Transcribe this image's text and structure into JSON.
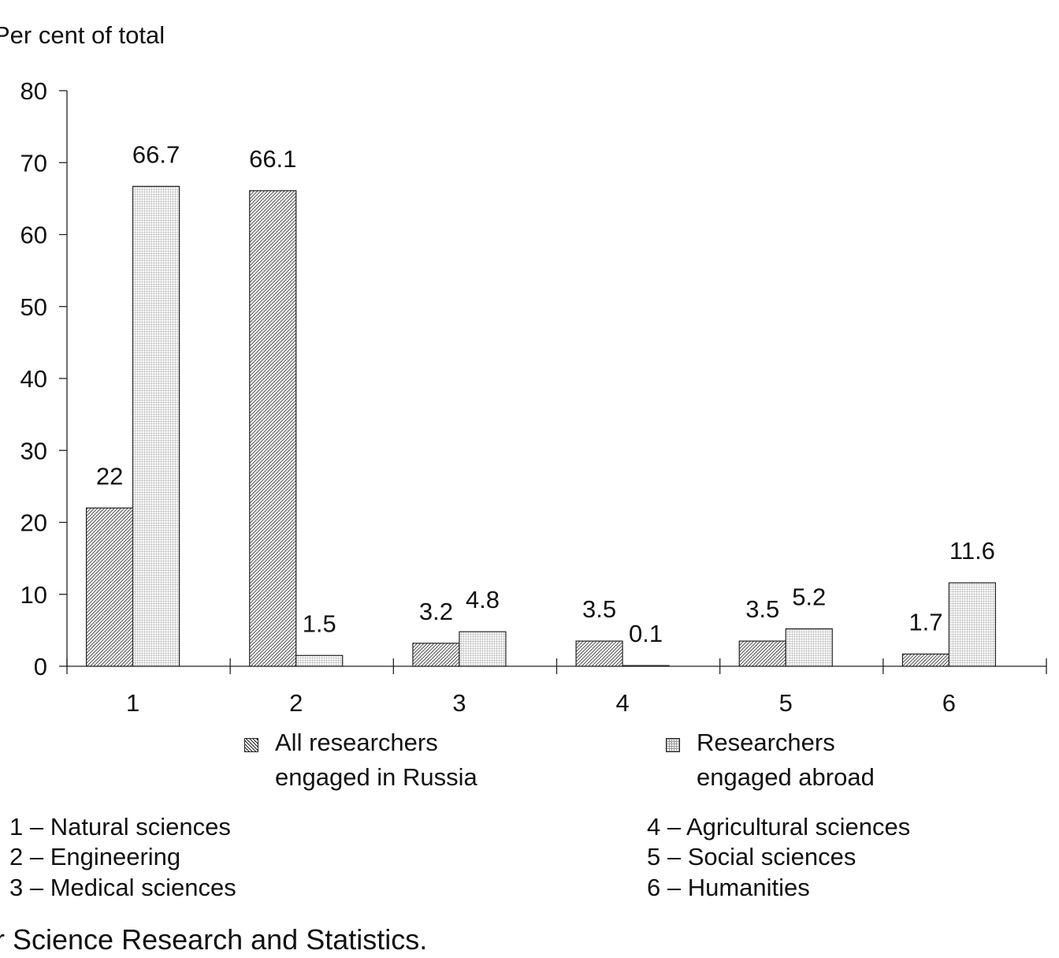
{
  "chart_data": {
    "type": "bar",
    "ylabel": "Per cent of total",
    "ylim": [
      0,
      80
    ],
    "yticks": [
      "0",
      "10",
      "20",
      "30",
      "40",
      "50",
      "60",
      "70",
      "80"
    ],
    "categories": [
      "1",
      "2",
      "3",
      "4",
      "5",
      "6"
    ],
    "series": [
      {
        "name": "All researchers engaged in Russia",
        "values": [
          22,
          66.1,
          3.2,
          3.5,
          3.5,
          1.7
        ],
        "labels": [
          "22",
          "66.1",
          "3.2",
          "3.5",
          "3.5",
          "1.7"
        ]
      },
      {
        "name": "Researchers engaged abroad",
        "values": [
          66.7,
          1.5,
          4.8,
          0.1,
          5.2,
          11.6
        ],
        "labels": [
          "66.7",
          "1.5",
          "4.8",
          "0.1",
          "5.2",
          "11.6"
        ]
      }
    ],
    "grid": false,
    "legend_position": "bottom"
  },
  "legend": {
    "russia_line1": "All researchers",
    "russia_line2": "engaged in Russia",
    "abroad_line1": "Researchers",
    "abroad_line2": "engaged abroad"
  },
  "category_key": {
    "left": [
      "1 – Natural sciences",
      "2 – Engineering",
      "3 – Medical sciences"
    ],
    "right": [
      "4 – Agricultural sciences",
      "5 – Social sciences",
      "6 – Humanities"
    ]
  },
  "source_fragment": "r Science Research and Statistics."
}
